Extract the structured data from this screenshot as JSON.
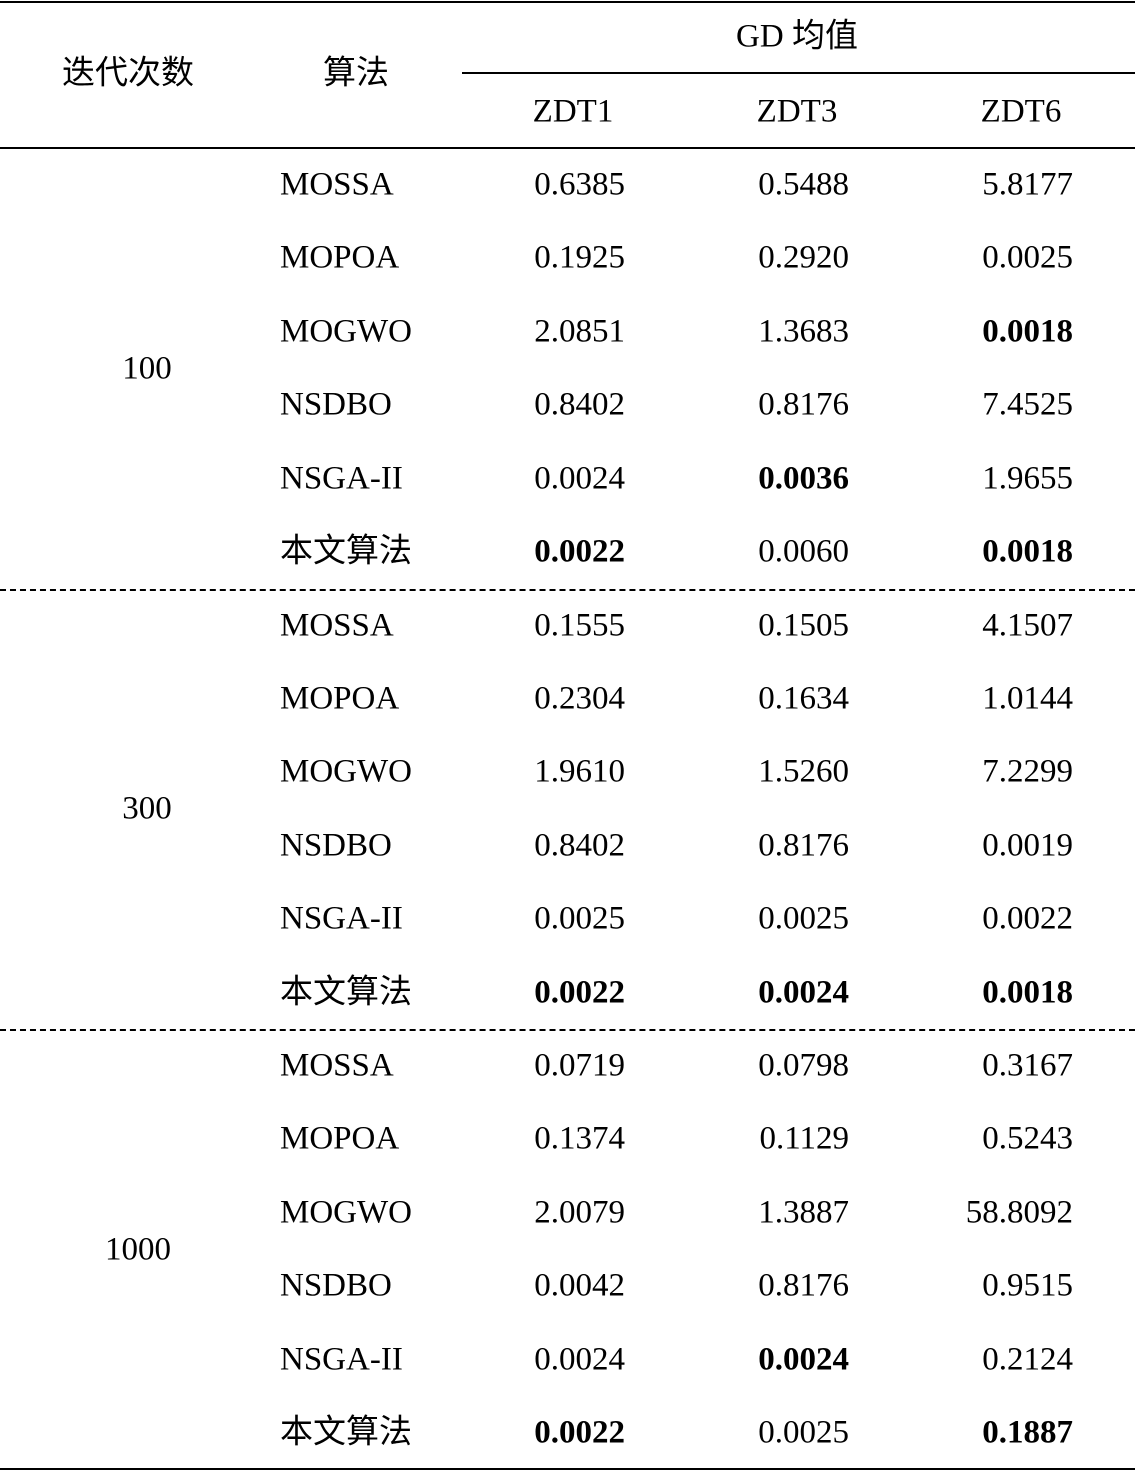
{
  "header": {
    "iter_label": "迭代次数",
    "algo_label": "算法",
    "group_label": "GD 均值",
    "problems": [
      "ZDT1",
      "ZDT3",
      "ZDT6"
    ]
  },
  "groups": [
    {
      "iterations": "100",
      "rows": [
        {
          "algo": "MOSSA",
          "values": [
            {
              "v": "0.6385",
              "bold": false
            },
            {
              "v": "0.5488",
              "bold": false
            },
            {
              "v": "5.8177",
              "bold": false
            }
          ]
        },
        {
          "algo": "MOPOA",
          "values": [
            {
              "v": "0.1925",
              "bold": false
            },
            {
              "v": "0.2920",
              "bold": false
            },
            {
              "v": "0.0025",
              "bold": false
            }
          ]
        },
        {
          "algo": "MOGWO",
          "values": [
            {
              "v": "2.0851",
              "bold": false
            },
            {
              "v": "1.3683",
              "bold": false
            },
            {
              "v": "0.0018",
              "bold": true
            }
          ]
        },
        {
          "algo": "NSDBO",
          "values": [
            {
              "v": "0.8402",
              "bold": false
            },
            {
              "v": "0.8176",
              "bold": false
            },
            {
              "v": "7.4525",
              "bold": false
            }
          ]
        },
        {
          "algo": "NSGA-II",
          "values": [
            {
              "v": "0.0024",
              "bold": false
            },
            {
              "v": "0.0036",
              "bold": true
            },
            {
              "v": "1.9655",
              "bold": false
            }
          ]
        },
        {
          "algo": "本文算法",
          "values": [
            {
              "v": "0.0022",
              "bold": true
            },
            {
              "v": "0.0060",
              "bold": false
            },
            {
              "v": "0.0018",
              "bold": true
            }
          ]
        }
      ]
    },
    {
      "iterations": "300",
      "rows": [
        {
          "algo": "MOSSA",
          "values": [
            {
              "v": "0.1555",
              "bold": false
            },
            {
              "v": "0.1505",
              "bold": false
            },
            {
              "v": "4.1507",
              "bold": false
            }
          ]
        },
        {
          "algo": "MOPOA",
          "values": [
            {
              "v": "0.2304",
              "bold": false
            },
            {
              "v": "0.1634",
              "bold": false
            },
            {
              "v": "1.0144",
              "bold": false
            }
          ]
        },
        {
          "algo": "MOGWO",
          "values": [
            {
              "v": "1.9610",
              "bold": false
            },
            {
              "v": "1.5260",
              "bold": false
            },
            {
              "v": "7.2299",
              "bold": false
            }
          ]
        },
        {
          "algo": "NSDBO",
          "values": [
            {
              "v": "0.8402",
              "bold": false
            },
            {
              "v": "0.8176",
              "bold": false
            },
            {
              "v": "0.0019",
              "bold": false
            }
          ]
        },
        {
          "algo": "NSGA-II",
          "values": [
            {
              "v": "0.0025",
              "bold": false
            },
            {
              "v": "0.0025",
              "bold": false
            },
            {
              "v": "0.0022",
              "bold": false
            }
          ]
        },
        {
          "algo": "本文算法",
          "values": [
            {
              "v": "0.0022",
              "bold": true
            },
            {
              "v": "0.0024",
              "bold": true
            },
            {
              "v": "0.0018",
              "bold": true
            }
          ]
        }
      ]
    },
    {
      "iterations": "1000",
      "rows": [
        {
          "algo": "MOSSA",
          "values": [
            {
              "v": "0.0719",
              "bold": false
            },
            {
              "v": "0.0798",
              "bold": false
            },
            {
              "v": "0.3167",
              "bold": false
            }
          ]
        },
        {
          "algo": "MOPOA",
          "values": [
            {
              "v": "0.1374",
              "bold": false
            },
            {
              "v": "0.1129",
              "bold": false
            },
            {
              "v": "0.5243",
              "bold": false
            }
          ]
        },
        {
          "algo": "MOGWO",
          "values": [
            {
              "v": "2.0079",
              "bold": false
            },
            {
              "v": "1.3887",
              "bold": false
            },
            {
              "v": "58.8092",
              "bold": false
            }
          ]
        },
        {
          "algo": "NSDBO",
          "values": [
            {
              "v": "0.0042",
              "bold": false
            },
            {
              "v": "0.8176",
              "bold": false
            },
            {
              "v": "0.9515",
              "bold": false
            }
          ]
        },
        {
          "algo": "NSGA-II",
          "values": [
            {
              "v": "0.0024",
              "bold": false
            },
            {
              "v": "0.0024",
              "bold": true
            },
            {
              "v": "0.2124",
              "bold": false
            }
          ]
        },
        {
          "algo": "本文算法",
          "values": [
            {
              "v": "0.0022",
              "bold": true
            },
            {
              "v": "0.0025",
              "bold": false
            },
            {
              "v": "0.1887",
              "bold": true
            }
          ]
        }
      ]
    }
  ]
}
